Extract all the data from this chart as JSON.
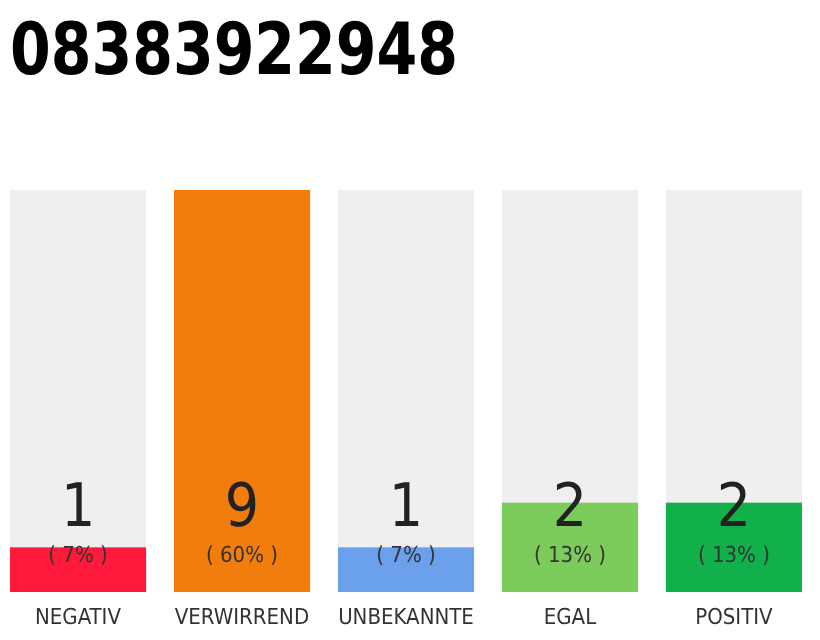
{
  "chart_data": {
    "type": "bar",
    "title": "08383922948",
    "categories": [
      "NEGATIV",
      "VERWIRREND",
      "UNBEKANNTE",
      "EGAL",
      "POSITIV"
    ],
    "values": [
      1,
      9,
      1,
      2,
      2
    ],
    "colors": [
      "#ff1a3c",
      "#f27c0c",
      "#6aa0ec",
      "#7ccc5c",
      "#12b04a"
    ],
    "data_labels": true,
    "annotations": [
      "( 7% )",
      "( 60% )",
      "( 7% )",
      "( 13% )",
      "( 13% )"
    ]
  }
}
